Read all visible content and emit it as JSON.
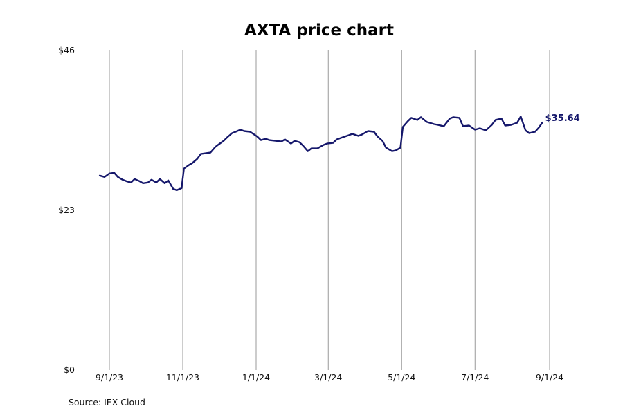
{
  "chart_data": {
    "type": "line",
    "title": "AXTA price chart",
    "source": "Source: IEX Cloud",
    "y_ticks": [
      "$0",
      "$23",
      "$46"
    ],
    "ylim": [
      0,
      46
    ],
    "x_ticks": [
      {
        "label": "9/1/23",
        "date": "2023-09-01"
      },
      {
        "label": "11/1/23",
        "date": "2023-11-01"
      },
      {
        "label": "1/1/24",
        "date": "2024-01-01"
      },
      {
        "label": "3/1/24",
        "date": "2024-03-01"
      },
      {
        "label": "5/1/24",
        "date": "2024-05-01"
      },
      {
        "label": "7/1/24",
        "date": "2024-07-01"
      },
      {
        "label": "9/1/24",
        "date": "2024-09-01"
      }
    ],
    "xlim": [
      "2023-08-24",
      "2024-09-01"
    ],
    "grid": "vertical",
    "last_value_label": "$35.64",
    "series": [
      {
        "color": "#15176b",
        "points": [
          [
            "2023-08-24",
            28.0
          ],
          [
            "2023-08-28",
            27.8
          ],
          [
            "2023-09-01",
            28.3
          ],
          [
            "2023-09-05",
            28.4
          ],
          [
            "2023-09-08",
            27.8
          ],
          [
            "2023-09-12",
            27.4
          ],
          [
            "2023-09-15",
            27.2
          ],
          [
            "2023-09-19",
            27.0
          ],
          [
            "2023-09-22",
            27.5
          ],
          [
            "2023-09-26",
            27.2
          ],
          [
            "2023-09-29",
            26.9
          ],
          [
            "2023-10-03",
            27.0
          ],
          [
            "2023-10-06",
            27.4
          ],
          [
            "2023-10-10",
            27.0
          ],
          [
            "2023-10-13",
            27.5
          ],
          [
            "2023-10-17",
            26.9
          ],
          [
            "2023-10-20",
            27.3
          ],
          [
            "2023-10-24",
            26.1
          ],
          [
            "2023-10-27",
            25.9
          ],
          [
            "2023-10-31",
            26.2
          ],
          [
            "2023-11-02",
            29.0
          ],
          [
            "2023-11-06",
            29.5
          ],
          [
            "2023-11-09",
            29.8
          ],
          [
            "2023-11-13",
            30.4
          ],
          [
            "2023-11-16",
            31.1
          ],
          [
            "2023-11-20",
            31.2
          ],
          [
            "2023-11-24",
            31.3
          ],
          [
            "2023-11-28",
            32.1
          ],
          [
            "2023-12-01",
            32.5
          ],
          [
            "2023-12-05",
            33.0
          ],
          [
            "2023-12-08",
            33.5
          ],
          [
            "2023-12-12",
            34.1
          ],
          [
            "2023-12-15",
            34.3
          ],
          [
            "2023-12-19",
            34.6
          ],
          [
            "2023-12-22",
            34.4
          ],
          [
            "2023-12-27",
            34.3
          ],
          [
            "2024-01-02",
            33.6
          ],
          [
            "2024-01-05",
            33.1
          ],
          [
            "2024-01-09",
            33.3
          ],
          [
            "2024-01-12",
            33.1
          ],
          [
            "2024-01-17",
            33.0
          ],
          [
            "2024-01-22",
            32.9
          ],
          [
            "2024-01-25",
            33.2
          ],
          [
            "2024-01-30",
            32.6
          ],
          [
            "2024-02-02",
            33.0
          ],
          [
            "2024-02-06",
            32.8
          ],
          [
            "2024-02-09",
            32.3
          ],
          [
            "2024-02-13",
            31.5
          ],
          [
            "2024-02-16",
            31.9
          ],
          [
            "2024-02-21",
            31.9
          ],
          [
            "2024-02-26",
            32.4
          ],
          [
            "2024-02-29",
            32.6
          ],
          [
            "2024-03-05",
            32.7
          ],
          [
            "2024-03-08",
            33.2
          ],
          [
            "2024-03-13",
            33.5
          ],
          [
            "2024-03-18",
            33.8
          ],
          [
            "2024-03-21",
            34.0
          ],
          [
            "2024-03-26",
            33.7
          ],
          [
            "2024-03-29",
            33.9
          ],
          [
            "2024-04-03",
            34.4
          ],
          [
            "2024-04-08",
            34.3
          ],
          [
            "2024-04-11",
            33.6
          ],
          [
            "2024-04-15",
            33.0
          ],
          [
            "2024-04-18",
            32.0
          ],
          [
            "2024-04-23",
            31.5
          ],
          [
            "2024-04-26",
            31.6
          ],
          [
            "2024-04-30",
            32.0
          ],
          [
            "2024-05-02",
            35.0
          ],
          [
            "2024-05-06",
            35.8
          ],
          [
            "2024-05-09",
            36.3
          ],
          [
            "2024-05-14",
            36.0
          ],
          [
            "2024-05-17",
            36.4
          ],
          [
            "2024-05-22",
            35.7
          ],
          [
            "2024-05-28",
            35.4
          ],
          [
            "2024-05-31",
            35.3
          ],
          [
            "2024-06-05",
            35.1
          ],
          [
            "2024-06-10",
            36.2
          ],
          [
            "2024-06-13",
            36.4
          ],
          [
            "2024-06-18",
            36.3
          ],
          [
            "2024-06-21",
            35.1
          ],
          [
            "2024-06-26",
            35.2
          ],
          [
            "2024-07-01",
            34.6
          ],
          [
            "2024-07-05",
            34.8
          ],
          [
            "2024-07-10",
            34.5
          ],
          [
            "2024-07-15",
            35.3
          ],
          [
            "2024-07-18",
            36.0
          ],
          [
            "2024-07-23",
            36.2
          ],
          [
            "2024-07-26",
            35.2
          ],
          [
            "2024-07-31",
            35.3
          ],
          [
            "2024-08-05",
            35.6
          ],
          [
            "2024-08-08",
            36.5
          ],
          [
            "2024-08-12",
            34.5
          ],
          [
            "2024-08-15",
            34.1
          ],
          [
            "2024-08-20",
            34.3
          ],
          [
            "2024-08-23",
            34.9
          ],
          [
            "2024-08-26",
            35.64
          ]
        ]
      }
    ]
  }
}
